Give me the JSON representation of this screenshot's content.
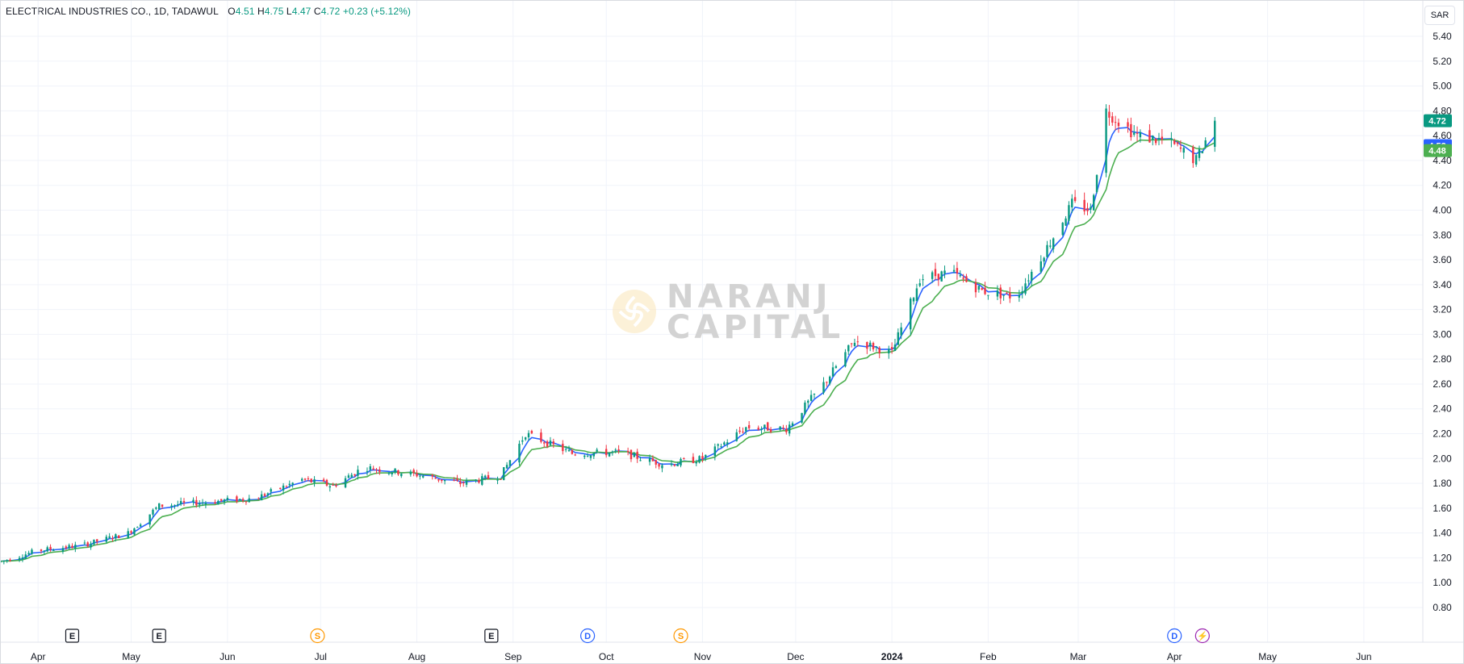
{
  "legend": {
    "symbol": "ELECTRICAL INDUSTRIES CO., 1D, TADAWUL",
    "open_label": "O",
    "open": "4.51",
    "high_label": "H",
    "high": "4.75",
    "low_label": "L",
    "low": "4.47",
    "close_label": "C",
    "close": "4.72",
    "change": "+0.23 (+5.12%)"
  },
  "currency": "SAR",
  "watermark": {
    "line1": "NARANJ",
    "line2": "CAPITAL"
  },
  "colors": {
    "up": "#089981",
    "down": "#f23645",
    "ema_fast": "#2962ff",
    "ema_slow": "#4caf50",
    "grid": "#f0f3fa"
  },
  "price_badges": [
    {
      "value": "4.72",
      "color": "#089981"
    },
    {
      "value": "4.52",
      "color": "#2962ff"
    },
    {
      "value": "4.48",
      "color": "#4caf50"
    }
  ],
  "events": [
    {
      "letter": "E",
      "month": "Apr",
      "color": "#131722",
      "shape": "square"
    },
    {
      "letter": "E",
      "month": "May",
      "color": "#131722",
      "shape": "square"
    },
    {
      "letter": "S",
      "month": "Jul",
      "color": "#ff9800",
      "shape": "circle"
    },
    {
      "letter": "E",
      "month": "Aug",
      "color": "#131722",
      "shape": "square"
    },
    {
      "letter": "D",
      "month": "Sep",
      "color": "#2962ff",
      "shape": "circle"
    },
    {
      "letter": "S",
      "month": "Oct",
      "color": "#ff9800",
      "shape": "circle"
    },
    {
      "letter": "D",
      "month": "Apr",
      "color": "#2962ff",
      "shape": "circle"
    },
    {
      "letter": "⚡",
      "month": "Apr",
      "color": "#9c27b0",
      "shape": "circle"
    }
  ],
  "chart_data": {
    "type": "candlestick",
    "y_ticks": [
      "5.40",
      "5.20",
      "5.00",
      "4.80",
      "4.60",
      "4.40",
      "4.20",
      "4.00",
      "3.80",
      "3.60",
      "3.40",
      "3.20",
      "3.00",
      "2.80",
      "2.60",
      "2.40",
      "2.20",
      "2.00",
      "1.80",
      "1.60",
      "1.40",
      "1.20",
      "1.00",
      "0.80"
    ],
    "ylim": [
      0.8,
      5.4
    ],
    "x_ticks": [
      "Apr",
      "May",
      "Jun",
      "Jul",
      "Aug",
      "Sep",
      "Oct",
      "Nov",
      "Dec",
      "2024",
      "Feb",
      "Mar",
      "Apr",
      "May",
      "Jun"
    ],
    "x_range": [
      "2023-03-20",
      "2024-06-20"
    ],
    "x_tick_dates": [
      "2023-04-01",
      "2023-05-01",
      "2023-06-01",
      "2023-07-01",
      "2023-08-01",
      "2023-09-01",
      "2023-10-01",
      "2023-11-01",
      "2023-12-01",
      "2024-01-01",
      "2024-02-01",
      "2024-03-01",
      "2024-04-01",
      "2024-05-01",
      "2024-06-01"
    ],
    "price_path": [
      [
        "2023-03-20",
        1.17
      ],
      [
        "2023-04-01",
        1.26
      ],
      [
        "2023-04-15",
        1.3
      ],
      [
        "2023-04-30",
        1.4
      ],
      [
        "2023-05-10",
        1.62
      ],
      [
        "2023-05-25",
        1.65
      ],
      [
        "2023-06-10",
        1.68
      ],
      [
        "2023-06-25",
        1.83
      ],
      [
        "2023-07-05",
        1.78
      ],
      [
        "2023-07-15",
        1.93
      ],
      [
        "2023-08-01",
        1.87
      ],
      [
        "2023-08-15",
        1.8
      ],
      [
        "2023-08-28",
        1.86
      ],
      [
        "2023-09-05",
        2.2
      ],
      [
        "2023-09-20",
        2.04
      ],
      [
        "2023-10-05",
        2.05
      ],
      [
        "2023-10-20",
        1.95
      ],
      [
        "2023-11-01",
        2.0
      ],
      [
        "2023-11-15",
        2.25
      ],
      [
        "2023-11-28",
        2.24
      ],
      [
        "2023-12-10",
        2.6
      ],
      [
        "2023-12-20",
        2.95
      ],
      [
        "2024-01-01",
        2.85
      ],
      [
        "2024-01-10",
        3.45
      ],
      [
        "2024-01-20",
        3.5
      ],
      [
        "2024-01-30",
        3.35
      ],
      [
        "2024-02-10",
        3.3
      ],
      [
        "2024-02-20",
        3.7
      ],
      [
        "2024-02-28",
        4.05
      ],
      [
        "2024-03-05",
        4.0
      ],
      [
        "2024-03-10",
        4.8
      ],
      [
        "2024-03-20",
        4.6
      ],
      [
        "2024-03-30",
        4.55
      ],
      [
        "2024-04-08",
        4.4
      ],
      [
        "2024-04-14",
        4.72
      ]
    ],
    "series": [
      {
        "name": "EMA fast",
        "color": "#2962ff",
        "lag": 4
      },
      {
        "name": "EMA slow",
        "color": "#4caf50",
        "lag": 10
      }
    ],
    "last": {
      "open": 4.51,
      "high": 4.75,
      "low": 4.47,
      "close": 4.72
    }
  }
}
